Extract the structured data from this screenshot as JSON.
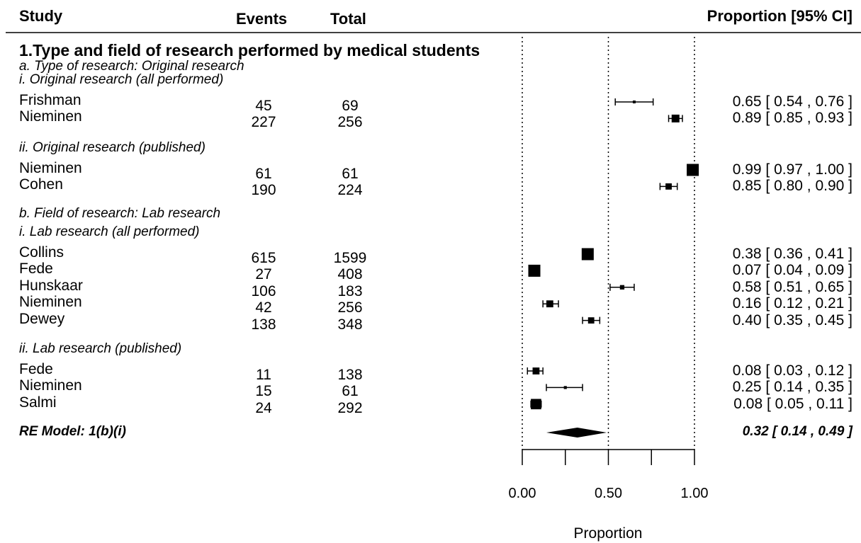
{
  "chart_data": {
    "type": "forest",
    "columns": {
      "study": "Study",
      "events": "Events",
      "total": "Total",
      "estimate": "Proportion [95% CI]"
    },
    "section_title": "1.Type and field of research performed by medical students",
    "groups": [
      {
        "label": "a. Type of research: Original research",
        "subgroups": [
          {
            "label": "i. Original research (all performed)",
            "rows": [
              {
                "study": "Frishman",
                "events": "45",
                "total": "69",
                "est": 0.65,
                "lo": 0.54,
                "hi": 0.76,
                "ci_text": "0.65 [ 0.54 , 0.76 ]"
              },
              {
                "study": "Nieminen",
                "events": "227",
                "total": "256",
                "est": 0.89,
                "lo": 0.85,
                "hi": 0.93,
                "ci_text": "0.89 [ 0.85 , 0.93 ]"
              }
            ]
          },
          {
            "label": "ii. Original research (published)",
            "rows": [
              {
                "study": "Nieminen",
                "events": "61",
                "total": "61",
                "est": 0.99,
                "lo": 0.97,
                "hi": 1.0,
                "ci_text": "0.99 [ 0.97 , 1.00 ]"
              },
              {
                "study": "Cohen",
                "events": "190",
                "total": "224",
                "est": 0.85,
                "lo": 0.8,
                "hi": 0.9,
                "ci_text": "0.85 [ 0.80 , 0.90 ]"
              }
            ]
          }
        ]
      },
      {
        "label": "b. Field of research: Lab research",
        "subgroups": [
          {
            "label": "i. Lab research (all performed)",
            "rows": [
              {
                "study": "Collins",
                "events": "615",
                "total": "1599",
                "est": 0.38,
                "lo": 0.36,
                "hi": 0.41,
                "ci_text": "0.38 [ 0.36 , 0.41 ]"
              },
              {
                "study": "Fede",
                "events": "27",
                "total": "408",
                "est": 0.07,
                "lo": 0.04,
                "hi": 0.09,
                "ci_text": "0.07 [ 0.04 , 0.09 ]"
              },
              {
                "study": "Hunskaar",
                "events": "106",
                "total": "183",
                "est": 0.58,
                "lo": 0.51,
                "hi": 0.65,
                "ci_text": "0.58 [ 0.51 , 0.65 ]"
              },
              {
                "study": "Nieminen",
                "events": "42",
                "total": "256",
                "est": 0.16,
                "lo": 0.12,
                "hi": 0.21,
                "ci_text": "0.16 [ 0.12 , 0.21 ]"
              },
              {
                "study": "Dewey",
                "events": "138",
                "total": "348",
                "est": 0.4,
                "lo": 0.35,
                "hi": 0.45,
                "ci_text": "0.40 [ 0.35 , 0.45 ]"
              }
            ]
          },
          {
            "label": "ii. Lab research (published)",
            "rows": [
              {
                "study": "Fede",
                "events": "11",
                "total": "138",
                "est": 0.08,
                "lo": 0.03,
                "hi": 0.12,
                "ci_text": "0.08 [ 0.03 , 0.12 ]"
              },
              {
                "study": "Nieminen",
                "events": "15",
                "total": "61",
                "est": 0.25,
                "lo": 0.14,
                "hi": 0.35,
                "ci_text": "0.25 [ 0.14 , 0.35 ]"
              },
              {
                "study": "Salmi",
                "events": "24",
                "total": "292",
                "est": 0.08,
                "lo": 0.05,
                "hi": 0.11,
                "ci_text": "0.08 [ 0.05 , 0.11 ]"
              }
            ]
          }
        ]
      }
    ],
    "summary": {
      "label": "RE Model: 1(b)(i)",
      "est": 0.32,
      "lo": 0.14,
      "hi": 0.49,
      "ci_text": "0.32 [ 0.14 , 0.49 ]"
    },
    "xaxis": {
      "label": "Proportion",
      "range": [
        0,
        1
      ],
      "ticks": [
        0,
        0.25,
        0.5,
        0.75,
        1.0
      ],
      "tick_labels": [
        "0.00",
        "0.50",
        "1.00"
      ],
      "labeled_ticks": [
        0,
        0.5,
        1.0
      ]
    },
    "reference_lines": [
      0,
      0.5,
      1.0
    ]
  }
}
